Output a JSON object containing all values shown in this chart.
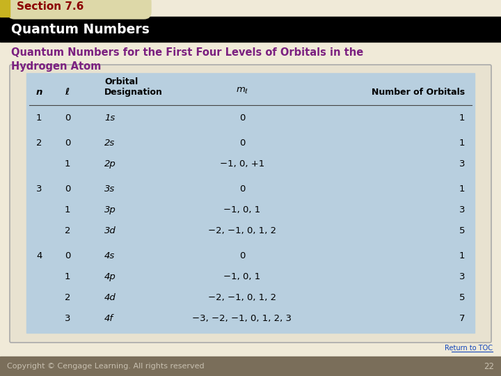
{
  "section_label": "Section 7.6",
  "title_bar": "Quantum Numbers",
  "subtitle": "Quantum Numbers for the First Four Levels of Orbitals in the\nHydrogen Atom",
  "bg_color": "#f0ead8",
  "title_bar_color": "#000000",
  "title_text_color": "#ffffff",
  "section_label_color": "#8b0000",
  "section_bg_color": "#ddd8a8",
  "subtitle_color": "#7b2080",
  "table_bg": "#b8cfdf",
  "outer_box_color": "#e8e2d0",
  "outer_border_color": "#aaaaaa",
  "header_row": [
    "n",
    "ℓ",
    "Orbital\nDesignation",
    "mℓ",
    "Number of Orbitals"
  ],
  "rows": [
    [
      "1",
      "0",
      "1s",
      "0",
      "1"
    ],
    [
      "2",
      "0",
      "2s",
      "0",
      "1"
    ],
    [
      "",
      "1",
      "2p",
      "−1, 0, +1",
      "3"
    ],
    [
      "3",
      "0",
      "3s",
      "0",
      "1"
    ],
    [
      "",
      "1",
      "3p",
      "−1, 0, 1",
      "3"
    ],
    [
      "",
      "2",
      "3d",
      "−2, −1, 0, 1, 2",
      "5"
    ],
    [
      "4",
      "0",
      "4s",
      "0",
      "1"
    ],
    [
      "",
      "1",
      "4p",
      "−1, 0, 1",
      "3"
    ],
    [
      "",
      "2",
      "4d",
      "−2, −1, 0, 1, 2",
      "5"
    ],
    [
      "",
      "3",
      "4f",
      "−3, −2, −1, 0, 1, 2, 3",
      "7"
    ]
  ],
  "footer_text": "Copyright © Cengage Learning. All rights reserved",
  "footer_page": "22",
  "return_toc": "Return to TOC",
  "footer_bg": "#7a6e5a",
  "footer_text_color": "#c8c0b0",
  "yellow_accent": "#c8b420",
  "tab_curve_color": "#c8c099"
}
